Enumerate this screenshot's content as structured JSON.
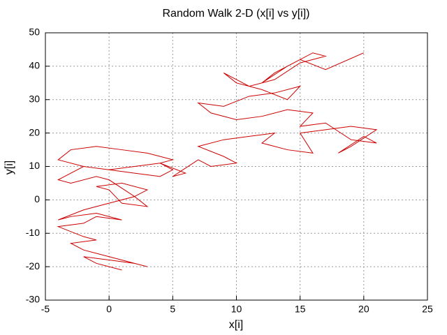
{
  "chart_data": {
    "type": "line",
    "title": "Random Walk 2-D (x[i] vs y[i])",
    "x_label": "x[i]",
    "y_label": "y[i]",
    "x": [
      1,
      -1,
      -2,
      0,
      2,
      3,
      0,
      -2,
      -3,
      -1,
      -2,
      -4,
      -2,
      -1,
      1,
      -1,
      -3,
      -4,
      -2,
      0,
      2,
      3,
      1,
      0,
      -1,
      1,
      3,
      2,
      0,
      -1,
      -3,
      -4,
      -2,
      0,
      2,
      4,
      5,
      3,
      1,
      -1,
      -3,
      -4,
      -2,
      0,
      2,
      4,
      5,
      4,
      6,
      5,
      7,
      8,
      10,
      9,
      7,
      9,
      11,
      13,
      12,
      14,
      16,
      15,
      17,
      19,
      21,
      19,
      18,
      20,
      21,
      19,
      17,
      15,
      16,
      14,
      12,
      10,
      8,
      7,
      9,
      11,
      13,
      15,
      14,
      12,
      10,
      9,
      11,
      13,
      15,
      17,
      16,
      14,
      12,
      13,
      15,
      17,
      20
    ],
    "series": [
      {
        "color": "#cc0000",
        "values": [
          -21,
          -19,
          -17,
          -18,
          -19,
          -20,
          -17,
          -15,
          -13,
          -12,
          -11,
          -8,
          -7,
          -5,
          -6,
          -4,
          -5,
          -6,
          -3,
          -1,
          1,
          -2,
          -1,
          3,
          4,
          5,
          3,
          1,
          6,
          7,
          5,
          6,
          10,
          9,
          10,
          11,
          12,
          14,
          15,
          16,
          15,
          12,
          10,
          9,
          8,
          7,
          9,
          11,
          8,
          7,
          12,
          10,
          11,
          13,
          16,
          18,
          19,
          20,
          17,
          15,
          14,
          20,
          21,
          22,
          21,
          16,
          14,
          19,
          17,
          18,
          23,
          22,
          26,
          27,
          25,
          24,
          26,
          29,
          28,
          31,
          32,
          34,
          30,
          33,
          35,
          38,
          34,
          36,
          41,
          43,
          44,
          40,
          35,
          38,
          42,
          39,
          44
        ]
      }
    ],
    "xlim": [
      -5,
      25
    ],
    "ylim": [
      -30,
      50
    ],
    "xticks": [
      -5,
      0,
      5,
      10,
      15,
      20,
      25
    ],
    "yticks": [
      -30,
      -20,
      -10,
      0,
      10,
      20,
      30,
      40,
      50
    ],
    "grid": true
  }
}
